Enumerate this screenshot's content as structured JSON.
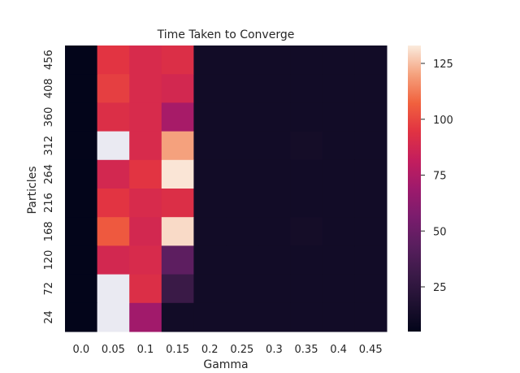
{
  "chart_data": {
    "type": "heatmap",
    "title": "Time Taken to Converge",
    "xlabel": "Gamma",
    "ylabel": "Particles",
    "x": [
      "0.0",
      "0.05",
      "0.1",
      "0.15",
      "0.2",
      "0.25",
      "0.3",
      "0.35",
      "0.4",
      "0.45"
    ],
    "y": [
      "456",
      "408",
      "360",
      "312",
      "264",
      "216",
      "168",
      "120",
      "72",
      "24"
    ],
    "values": [
      [
        5,
        95,
        90,
        92,
        12,
        12,
        12,
        12,
        12,
        12
      ],
      [
        5,
        98,
        90,
        88,
        12,
        12,
        12,
        12,
        12,
        12
      ],
      [
        5,
        92,
        90,
        72,
        12,
        12,
        12,
        12,
        12,
        12
      ],
      [
        5,
        null,
        90,
        120,
        12,
        12,
        12,
        13,
        12,
        12
      ],
      [
        5,
        88,
        95,
        132,
        12,
        12,
        12,
        12,
        12,
        12
      ],
      [
        5,
        95,
        90,
        92,
        12,
        12,
        12,
        12,
        12,
        12
      ],
      [
        5,
        105,
        88,
        130,
        12,
        12,
        12,
        13,
        12,
        12
      ],
      [
        5,
        88,
        90,
        45,
        12,
        12,
        12,
        12,
        12,
        12
      ],
      [
        5,
        null,
        92,
        30,
        12,
        12,
        12,
        12,
        12,
        12
      ],
      [
        5,
        null,
        70,
        12,
        12,
        12,
        12,
        12,
        12,
        12
      ]
    ],
    "missing_color": "#eaeaf2",
    "colormap": "rocket",
    "vmin": 5,
    "vmax": 133,
    "colorbar_ticks": [
      25,
      50,
      75,
      100,
      125
    ],
    "grid": false
  }
}
